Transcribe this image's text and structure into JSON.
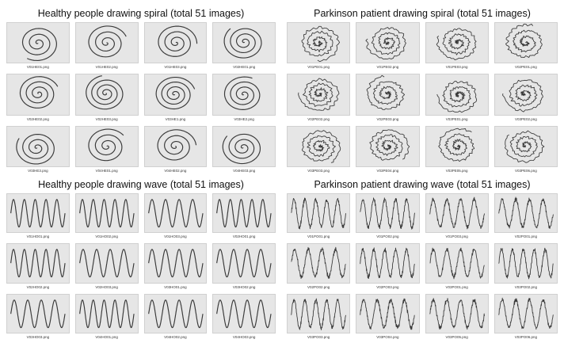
{
  "panels": [
    {
      "title": "Healthy people drawing spiral (total 51 images)",
      "kind": "spiral",
      "group": "healthy",
      "captions": [
        "V01HE01.png",
        "V01HE02.png",
        "V01HE03.png",
        "V02HE01.png",
        "V02HE02.png",
        "V02HE03.png",
        "V03HE1.png",
        "V03HE2.png",
        "V03HE3.png",
        "V04HE01.png",
        "V04HE02.png",
        "V04HE03.png"
      ]
    },
    {
      "title": "Parkinson patient drawing spiral (total 51 images)",
      "kind": "spiral",
      "group": "parkinson",
      "captions": [
        "V01PE01.png",
        "V01PE02.png",
        "V01PE03.png",
        "V02PE01.png",
        "V02PE02.png",
        "V02PE03.png",
        "V03PE01.png",
        "V03PE02.png",
        "V03PE03.png",
        "V03PE04.png",
        "V03PE05.png",
        "V03PE06.png"
      ]
    },
    {
      "title": "Healthy people drawing wave (total 51 images)",
      "kind": "wave",
      "group": "healthy",
      "captions": [
        "V01HO01.png",
        "V01HO02.png",
        "V01HO03.png",
        "V02HO01.png",
        "V02HO02.png",
        "V02HO03.png",
        "V03HO01.png",
        "V03HO02.png",
        "V03HO03.png",
        "V04HO01.png",
        "V04HO02.png",
        "V04HO03.png"
      ]
    },
    {
      "title": "Parkinson patient drawing wave (total 51 images)",
      "kind": "wave",
      "group": "parkinson",
      "captions": [
        "V01PO01.png",
        "V01PO02.png",
        "V01PO03.png",
        "V02PO01.png",
        "V02PO02.png",
        "V02PO03.png",
        "V03PO01.png",
        "V03PO02.png",
        "V03PO03.png",
        "V03PO04.png",
        "V03PO05.png",
        "V03PO06.png"
      ]
    }
  ],
  "colors": {
    "background": "#ffffff",
    "thumb_bg": "#e6e6e6",
    "ink": "#3a3a3a"
  }
}
